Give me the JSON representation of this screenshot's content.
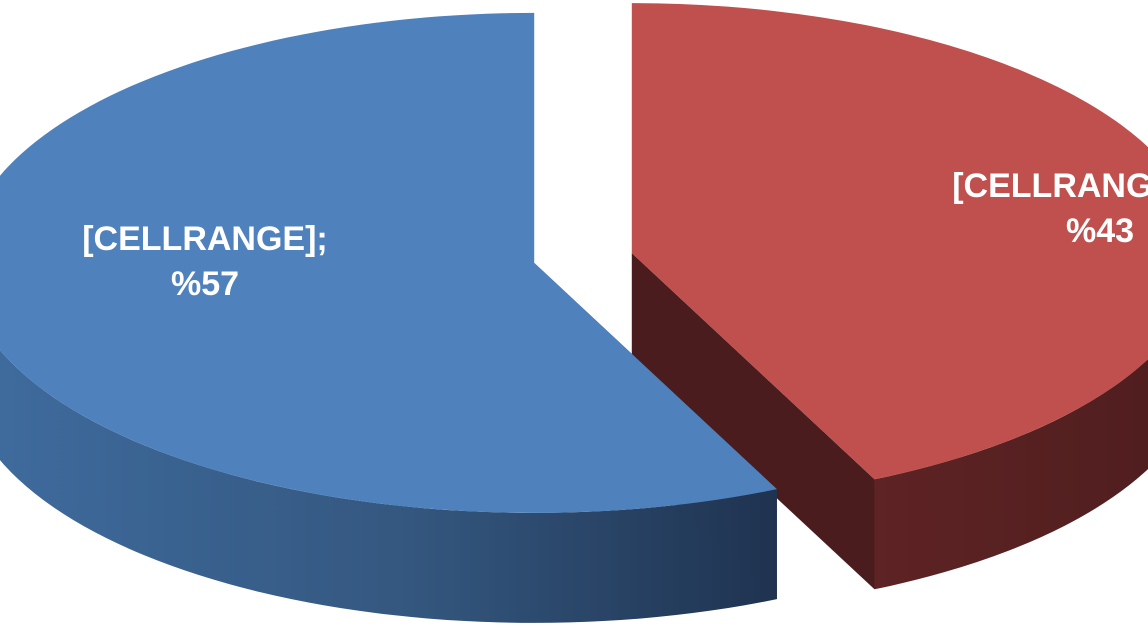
{
  "chart_data": {
    "type": "pie",
    "style": "3d-exploded",
    "categories": [
      "[CELLRANGE]",
      "[CELLRANGE]"
    ],
    "values": [
      57,
      43
    ],
    "value_prefix": "%",
    "data_labels": [
      {
        "category": "[CELLRANGE];",
        "value": "%57"
      },
      {
        "category": "[CELLRANGE];",
        "value": "%43"
      }
    ],
    "colors": {
      "slice_1_top": "#4f81bd",
      "slice_1_side_dark": "#1f3350",
      "slice_2_top": "#c0504d",
      "slice_2_side_dark": "#4e1d1e",
      "label_text": "#ffffff"
    },
    "title": "",
    "legend": "none"
  }
}
